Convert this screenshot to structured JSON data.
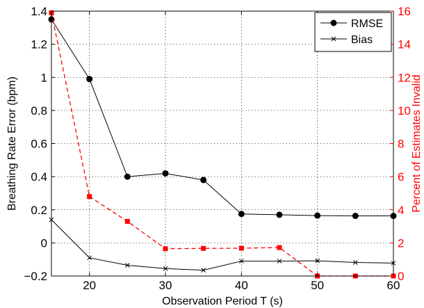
{
  "chart_data": {
    "type": "line",
    "xlabel": "Observation Period T (s)",
    "ylabel_left": "Breathing Rate Error (bpm)",
    "ylabel_right": "Percent of Estimates Invalid",
    "xlim": [
      15,
      60
    ],
    "ylim_left": [
      -0.2,
      1.4
    ],
    "ylim_right": [
      0,
      16
    ],
    "x_ticks": [
      20,
      30,
      40,
      50,
      60
    ],
    "x_tick_labels": [
      "20",
      "30",
      "40",
      "50",
      "60"
    ],
    "y_left_ticks": [
      -0.2,
      0,
      0.2,
      0.4,
      0.6,
      0.8,
      1,
      1.2,
      1.4
    ],
    "y_left_tick_labels": [
      "−0.2",
      "0",
      "0.2",
      "0.4",
      "0.6",
      "0.8",
      "1",
      "1.2",
      "1.4"
    ],
    "y_right_ticks": [
      0,
      2,
      4,
      6,
      8,
      10,
      12,
      14,
      16
    ],
    "y_right_tick_labels": [
      "0",
      "2",
      "4",
      "6",
      "8",
      "10",
      "12",
      "14",
      "16"
    ],
    "grid": true,
    "legend_position": "top-right",
    "x": [
      15,
      20,
      25,
      30,
      35,
      40,
      45,
      50,
      55,
      60
    ],
    "series": [
      {
        "name": "RMSE",
        "axis": "left",
        "color": "#000000",
        "marker": "circle",
        "line_style": "solid",
        "values": [
          1.35,
          0.99,
          0.4,
          0.42,
          0.38,
          0.175,
          0.17,
          0.165,
          0.163,
          0.163
        ]
      },
      {
        "name": "Bias",
        "axis": "left",
        "color": "#000000",
        "marker": "x",
        "line_style": "solid",
        "values": [
          0.14,
          -0.09,
          -0.135,
          -0.155,
          -0.165,
          -0.11,
          -0.11,
          -0.108,
          -0.118,
          -0.122
        ]
      },
      {
        "axis": "right",
        "color": "#ff0000",
        "marker": "square",
        "line_style": "dashed",
        "values": [
          15.9,
          4.8,
          3.3,
          1.65,
          1.67,
          1.68,
          1.72,
          0,
          0,
          0
        ]
      }
    ]
  }
}
